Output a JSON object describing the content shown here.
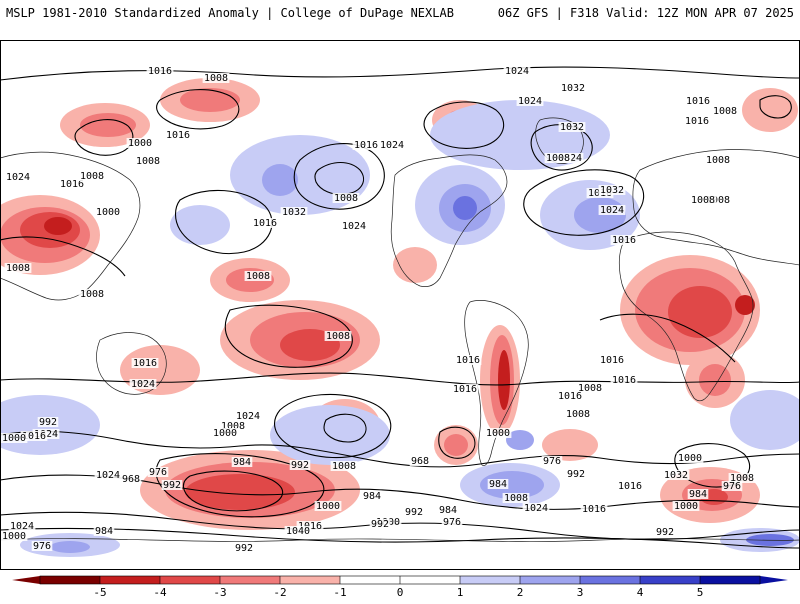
{
  "header": {
    "left_title": "MSLP 1981-2010 Standardized Anomaly | College of DuPage NEXLAB",
    "right_title": "06Z GFS | F318 Valid: 12Z MON APR 07 2025"
  },
  "colors": {
    "neg5": "#7a0000",
    "neg4": "#c41e1e",
    "neg3": "#e04848",
    "neg2": "#f07a7a",
    "neg1": "#f9b2aa",
    "zero": "#ffffff",
    "pos1": "#c8ccf6",
    "pos2": "#9ea4ee",
    "pos3": "#6a72e0",
    "pos4": "#3840c8",
    "pos5": "#0a10a0"
  },
  "colorbar": {
    "ticks": [
      "-5",
      "-4",
      "-3",
      "-2",
      "-1",
      "0",
      "1",
      "2",
      "3",
      "4",
      "5"
    ]
  },
  "isobar_labels": [
    {
      "text": "1016",
      "lon": -150,
      "lat": 86
    },
    {
      "text": "1008",
      "lon": -132,
      "lat": 78
    },
    {
      "text": "1024",
      "lon": 65,
      "lat": 86
    },
    {
      "text": "1032",
      "lon": 108,
      "lat": 70
    },
    {
      "text": "1024",
      "lon": 82,
      "lat": 64
    },
    {
      "text": "1016",
      "lon": 150,
      "lat": 63
    },
    {
      "text": "1008",
      "lon": 157,
      "lat": 58
    },
    {
      "text": "1016",
      "lon": -132,
      "lat": 55
    },
    {
      "text": "1000",
      "lon": -152,
      "lat": 50
    },
    {
      "text": "1008",
      "lon": -143,
      "lat": 44
    },
    {
      "text": "1024",
      "lon": -168,
      "lat": 35
    },
    {
      "text": "1016",
      "lon": -146,
      "lat": 33
    },
    {
      "text": "1008",
      "lon": -143,
      "lat": 29
    },
    {
      "text": "1000",
      "lon": -126,
      "lat": 18
    },
    {
      "text": "1016",
      "lon": 17,
      "lat": 47
    },
    {
      "text": "1024",
      "lon": 17,
      "lat": 47
    },
    {
      "text": "1008",
      "lon": -26,
      "lat": 28
    },
    {
      "text": "1032",
      "lon": -46,
      "lat": 14
    },
    {
      "text": "1024",
      "lon": -7,
      "lat": 2
    },
    {
      "text": "1016",
      "lon": -61,
      "lat": 2
    },
    {
      "text": "1016",
      "lon": 58,
      "lat": 31
    },
    {
      "text": "1032",
      "lon": 59,
      "lat": 42
    },
    {
      "text": "1024",
      "lon": 76,
      "lat": 61
    },
    {
      "text": "1016",
      "lon": 94,
      "lat": 58
    },
    {
      "text": "1008",
      "lon": 76,
      "lat": 42
    },
    {
      "text": "1032",
      "lon": 99,
      "lat": 30
    },
    {
      "text": "1024",
      "lon": 100,
      "lat": 18
    },
    {
      "text": "1016",
      "lon": 120,
      "lat": -5
    },
    {
      "text": "1008",
      "lon": 151,
      "lat": 42
    },
    {
      "text": "1008",
      "lon": 138,
      "lat": 18
    },
    {
      "text": "1008",
      "lon": 119,
      "lat": 18
    },
    {
      "text": "1008",
      "lon": -163,
      "lat": -23
    },
    {
      "text": "1008",
      "lon": -136,
      "lat": -39
    },
    {
      "text": "1008",
      "lon": -42,
      "lat": -22
    },
    {
      "text": "1008",
      "lon": 152,
      "lat": -45
    },
    {
      "text": "1016",
      "lon": -114,
      "lat": -57
    },
    {
      "text": "1024",
      "lon": -143,
      "lat": -66
    },
    {
      "text": "1016",
      "lon": 36,
      "lat": -57
    },
    {
      "text": "1016",
      "lon": 113,
      "lat": -57
    },
    {
      "text": "1016",
      "lon": 127,
      "lat": -67
    },
    {
      "text": "1008",
      "lon": 70,
      "lat": -71
    },
    {
      "text": "1016",
      "lon": 42,
      "lat": -73
    },
    {
      "text": "1000",
      "lon": 82,
      "lat": -81
    },
    {
      "text": "1008",
      "lon": 101,
      "lat": -77
    },
    {
      "text": "1016",
      "lon": -37,
      "lat": -71
    },
    {
      "text": "1024",
      "lon": -3,
      "lat": -82
    },
    {
      "text": "1008",
      "lon": -81,
      "lat": -79
    },
    {
      "text": "1000",
      "lon": -72,
      "lat": -80
    },
    {
      "text": "992",
      "lon": -74,
      "lat": -85
    },
    {
      "text": "1024",
      "lon": -146,
      "lat": -85
    },
    {
      "text": "1016",
      "lon": -148,
      "lat": -89
    },
    {
      "text": "1000",
      "lon": -163,
      "lat": -86
    },
    {
      "text": "1024",
      "lon": -150,
      "lat": -89
    },
    {
      "text": "968",
      "lon": -59,
      "lat": -94
    },
    {
      "text": "976",
      "lon": -27,
      "lat": -99
    },
    {
      "text": "984",
      "lon": -7,
      "lat": -97
    },
    {
      "text": "992",
      "lon": 27,
      "lat": -96
    },
    {
      "text": "1008",
      "lon": -92,
      "lat": -109
    },
    {
      "text": "968",
      "lon": -29,
      "lat": -113
    },
    {
      "text": "1000",
      "lon": 64,
      "lat": -104
    },
    {
      "text": "984",
      "lon": 144,
      "lat": -98
    },
    {
      "text": "992",
      "lon": 124,
      "lat": -102
    },
    {
      "text": "984",
      "lon": 92,
      "lat": -108
    },
    {
      "text": "976",
      "lon": 160,
      "lat": -106
    },
    {
      "text": "992",
      "lon": 155,
      "lat": -110
    },
    {
      "text": "1008",
      "lon": 136,
      "lat": -112
    },
    {
      "text": "1000",
      "lon": 105,
      "lat": -116
    },
    {
      "text": "1032",
      "lon": 148,
      "lat": -117
    },
    {
      "text": "1016",
      "lon": 65,
      "lat": -119
    },
    {
      "text": "1008",
      "lon": 22,
      "lat": -119
    },
    {
      "text": "976",
      "lon": -14,
      "lat": -117
    },
    {
      "text": "984",
      "lon": -22,
      "lat": -119
    },
    {
      "text": "992",
      "lon": -33,
      "lat": -119
    },
    {
      "text": "1000",
      "lon": -6,
      "lat": -121
    },
    {
      "text": "1016",
      "lon": -60,
      "lat": -120
    },
    {
      "text": "1024",
      "lon": -52,
      "lat": -123
    },
    {
      "text": "976",
      "lon": -120,
      "lat": -105
    },
    {
      "text": "984",
      "lon": -127,
      "lat": -105
    },
    {
      "text": "992",
      "lon": -138,
      "lat": -106
    },
    {
      "text": "1000",
      "lon": -150,
      "lat": -105
    },
    {
      "text": "992",
      "lon": -170,
      "lat": -110
    },
    {
      "text": "1016",
      "lon": -174,
      "lat": -115
    },
    {
      "text": "1040",
      "lon": -160,
      "lat": -117
    },
    {
      "text": "1024",
      "lon": -120,
      "lat": -109
    },
    {
      "text": "1000",
      "lon": -40,
      "lat": -105
    },
    {
      "text": "976",
      "lon": -135,
      "lat": -104
    },
    {
      "text": "984",
      "lon": -156,
      "lat": -104
    },
    {
      "text": "992",
      "lon": -133,
      "lat": -105
    }
  ]
}
